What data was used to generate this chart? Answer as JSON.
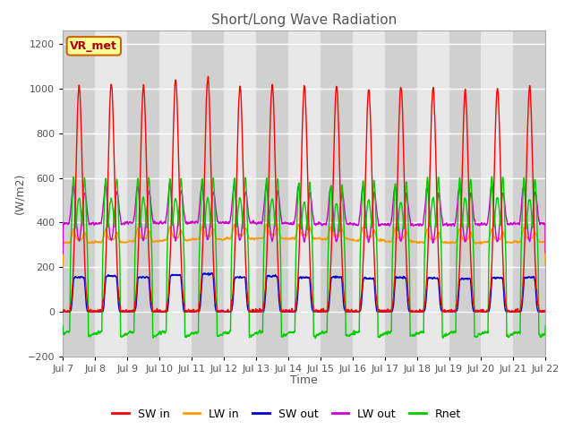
{
  "title": "Short/Long Wave Radiation",
  "xlabel": "Time",
  "ylabel": "(W/m2)",
  "ylim": [
    -200,
    1260
  ],
  "yticks": [
    -200,
    0,
    200,
    400,
    600,
    800,
    1000,
    1200
  ],
  "start_day": 7,
  "end_day": 22,
  "colors": {
    "SW_in": "#ff0000",
    "LW_in": "#ff9900",
    "SW_out": "#0000cc",
    "LW_out": "#cc00cc",
    "Rnet": "#00cc00"
  },
  "legend_labels": [
    "SW in",
    "LW in",
    "SW out",
    "LW out",
    "Rnet"
  ],
  "annotation_text": "VR_met",
  "annotation_box_color": "#ffff99",
  "annotation_box_edge": "#cc6600",
  "annotation_text_color": "#aa0000",
  "background_color": "#ffffff",
  "band_light": "#e8e8e8",
  "band_dark": "#d0d0d0",
  "grid_color": "#ffffff",
  "title_color": "#555555",
  "tick_color": "#555555"
}
